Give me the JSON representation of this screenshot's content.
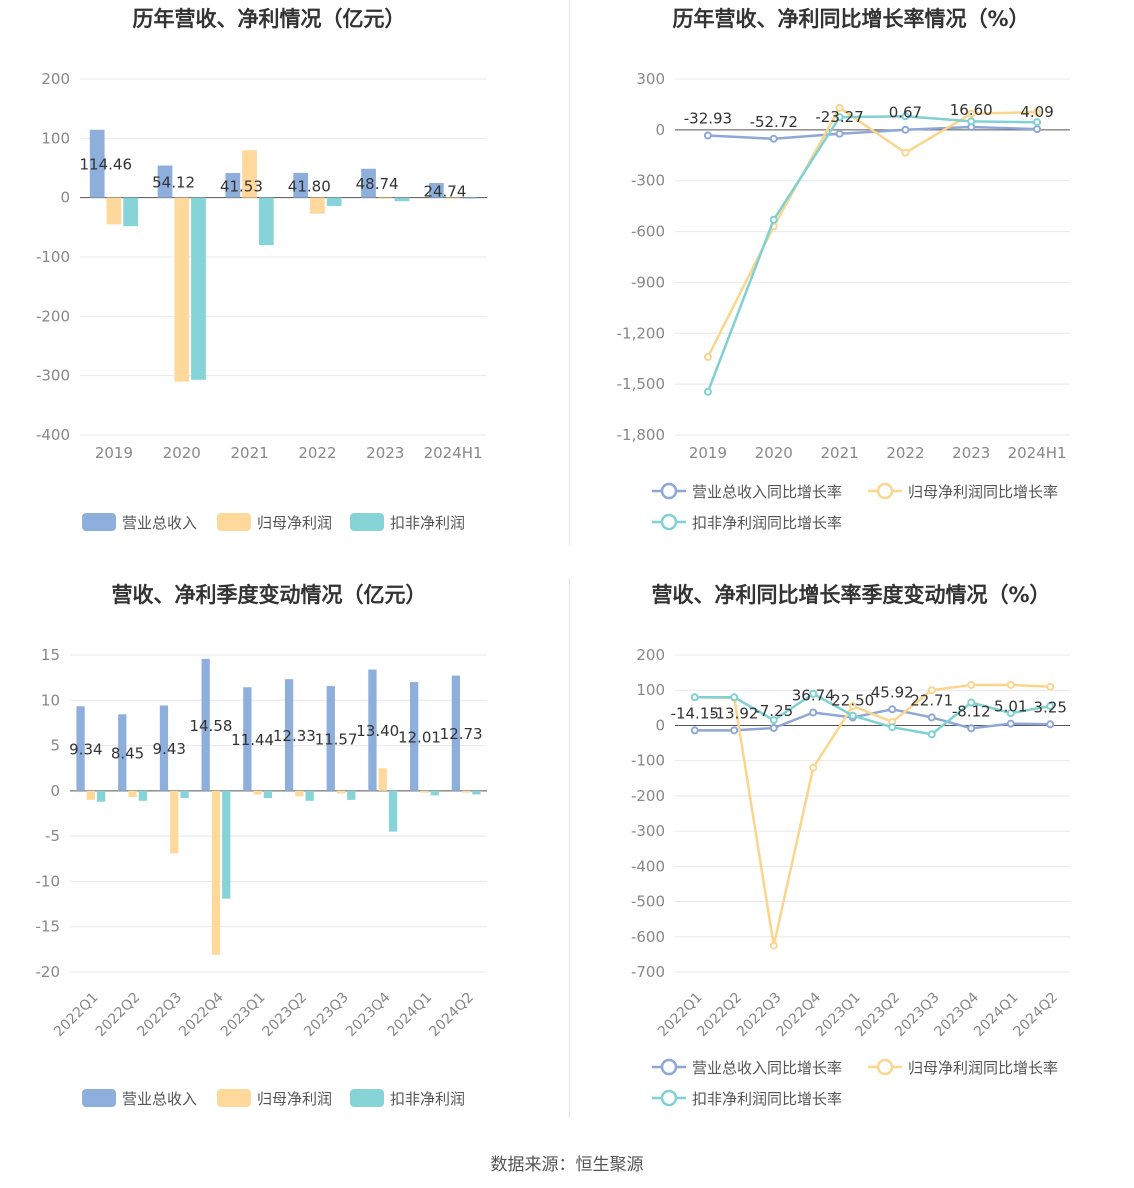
{
  "source_label": "数据来源：恒生聚源",
  "colors": {
    "revenue_bar": "#8eaedc",
    "netprofit_bar": "#ffd99c",
    "deducted_bar": "#86d4d8",
    "revenue_line": "#8ea7d6",
    "netprofit_line": "#fcd58c",
    "deducted_line": "#7fd1d3",
    "grid": "#e8e8ee",
    "axis_text": "#888888",
    "title": "#333333"
  },
  "chart_data": [
    {
      "id": "annual-amount",
      "type": "bar",
      "title": "历年营收、净利情况（亿元）",
      "categories": [
        "2019",
        "2020",
        "2021",
        "2022",
        "2023",
        "2024H1"
      ],
      "yticks": [
        200,
        100,
        0,
        -100,
        -200,
        -300,
        -400
      ],
      "ylim": [
        -400,
        200
      ],
      "yticklabels": [
        "200",
        "100",
        "0",
        "-100",
        "-200",
        "-300",
        "-400"
      ],
      "series": [
        {
          "name": "营业总收入",
          "values": [
            114.46,
            54.12,
            41.53,
            41.8,
            48.74,
            24.74
          ],
          "labels": [
            "114.46",
            "54.12",
            "41.53",
            "41.80",
            "48.74",
            "24.74"
          ]
        },
        {
          "name": "归母净利润",
          "values": [
            -45.0,
            -310.0,
            80.0,
            -27.0,
            -1.0,
            -1.0
          ]
        },
        {
          "name": "扣非净利润",
          "values": [
            -48.0,
            -307.0,
            -80.0,
            -14.0,
            -6.0,
            -1.0
          ]
        }
      ],
      "legend": [
        "营业总收入",
        "归母净利润",
        "扣非净利润"
      ],
      "legend_position": "bottom",
      "grid": true
    },
    {
      "id": "annual-growth",
      "type": "line",
      "title": "历年营收、净利同比增长率情况（%）",
      "categories": [
        "2019",
        "2020",
        "2021",
        "2022",
        "2023",
        "2024H1"
      ],
      "yticks": [
        300,
        0,
        -300,
        -600,
        -900,
        -1200,
        -1500,
        -1800
      ],
      "ylim": [
        -1800,
        300
      ],
      "yticklabels": [
        "300",
        "0",
        "-300",
        "-600",
        "-900",
        "-1,200",
        "-1,500",
        "-1,800"
      ],
      "series": [
        {
          "name": "营业总收入同比增长率",
          "values": [
            -32.93,
            -52.72,
            -23.27,
            0.67,
            16.6,
            4.09
          ],
          "labels": [
            "-32.93",
            "-52.72",
            "-23.27",
            "0.67",
            "16.60",
            "4.09"
          ]
        },
        {
          "name": "归母净利润同比增长率",
          "values": [
            -1340,
            -570,
            130,
            -135,
            95,
            105
          ]
        },
        {
          "name": "扣非净利润同比增长率",
          "values": [
            -1545,
            -530,
            75,
            80,
            50,
            45
          ]
        }
      ],
      "legend": [
        "营业总收入同比增长率",
        "归母净利润同比增长率",
        "扣非净利润同比增长率"
      ],
      "legend_position": "bottom",
      "grid": true
    },
    {
      "id": "quarterly-amount",
      "type": "bar",
      "title": "营收、净利季度变动情况（亿元）",
      "categories": [
        "2022Q1",
        "2022Q2",
        "2022Q3",
        "2022Q4",
        "2023Q1",
        "2023Q2",
        "2023Q3",
        "2023Q4",
        "2024Q1",
        "2024Q2"
      ],
      "yticks": [
        15,
        10,
        5,
        0,
        -5,
        -10,
        -15,
        -20
      ],
      "ylim": [
        -20,
        15
      ],
      "yticklabels": [
        "15",
        "10",
        "5",
        "0",
        "-5",
        "-10",
        "-15",
        "-20"
      ],
      "series": [
        {
          "name": "营业总收入",
          "values": [
            9.34,
            8.45,
            9.43,
            14.58,
            11.44,
            12.33,
            11.57,
            13.4,
            12.01,
            12.73
          ],
          "labels": [
            "9.34",
            "8.45",
            "9.43",
            "14.58",
            "11.44",
            "12.33",
            "11.57",
            "13.40",
            "12.01",
            "12.73"
          ]
        },
        {
          "name": "归母净利润",
          "values": [
            -1.0,
            -0.7,
            -6.9,
            -18.1,
            -0.4,
            -0.6,
            -0.3,
            2.5,
            -0.2,
            -0.2
          ]
        },
        {
          "name": "扣非净利润",
          "values": [
            -1.2,
            -1.1,
            -0.8,
            -11.9,
            -0.8,
            -1.1,
            -1.0,
            -4.5,
            -0.5,
            -0.4
          ]
        }
      ],
      "legend": [
        "营业总收入",
        "归母净利润",
        "扣非净利润"
      ],
      "legend_position": "bottom",
      "grid": true
    },
    {
      "id": "quarterly-growth",
      "type": "line",
      "title": "营收、净利同比增长率季度变动情况（%）",
      "categories": [
        "2022Q1",
        "2022Q2",
        "2022Q3",
        "2022Q4",
        "2023Q1",
        "2023Q2",
        "2023Q3",
        "2023Q4",
        "2024Q1",
        "2024Q2"
      ],
      "yticks": [
        200,
        100,
        0,
        -100,
        -200,
        -300,
        -400,
        -500,
        -600,
        -700
      ],
      "ylim": [
        -700,
        200
      ],
      "yticklabels": [
        "200",
        "100",
        "0",
        "-100",
        "-200",
        "-300",
        "-400",
        "-500",
        "-600",
        "-700"
      ],
      "series": [
        {
          "name": "营业总收入同比增长率",
          "values": [
            -14.15,
            -13.92,
            -7.25,
            36.74,
            22.5,
            45.92,
            22.71,
            -8.12,
            5.01,
            3.25
          ],
          "labels": [
            "-14.15",
            "-13.92",
            "-7.25",
            "36.74",
            "22.50",
            "45.92",
            "22.71",
            "-8.12",
            "5.01",
            "3.25"
          ]
        },
        {
          "name": "归母净利润同比增长率",
          "values": [
            80,
            78,
            -625,
            -120,
            55,
            10,
            100,
            115,
            115,
            110
          ]
        },
        {
          "name": "扣非净利润同比增长率",
          "values": [
            80,
            80,
            15,
            90,
            28,
            -5,
            -25,
            65,
            35,
            55
          ]
        }
      ],
      "legend": [
        "营业总收入同比增长率",
        "归母净利润同比增长率",
        "扣非净利润同比增长率"
      ],
      "legend_position": "bottom",
      "grid": true
    }
  ]
}
